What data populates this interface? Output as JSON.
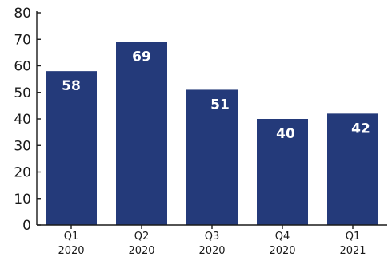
{
  "chart_data": {
    "type": "bar",
    "categories": [
      [
        "Q1",
        "2020"
      ],
      [
        "Q2",
        "2020"
      ],
      [
        "Q3",
        "2020"
      ],
      [
        "Q4",
        "2020"
      ],
      [
        "Q1",
        "2021"
      ]
    ],
    "values": [
      58,
      69,
      51,
      40,
      42
    ],
    "data_labels": [
      "58",
      "69",
      "51",
      "40",
      "42"
    ],
    "yticks": [
      "0",
      "10",
      "20",
      "30",
      "40",
      "50",
      "60",
      "70",
      "80"
    ],
    "ylim": [
      0,
      80
    ],
    "bar_color": "#243a7a",
    "data_label_color": "#ffffff",
    "grid": false,
    "title": "",
    "xlabel": "",
    "ylabel": ""
  }
}
